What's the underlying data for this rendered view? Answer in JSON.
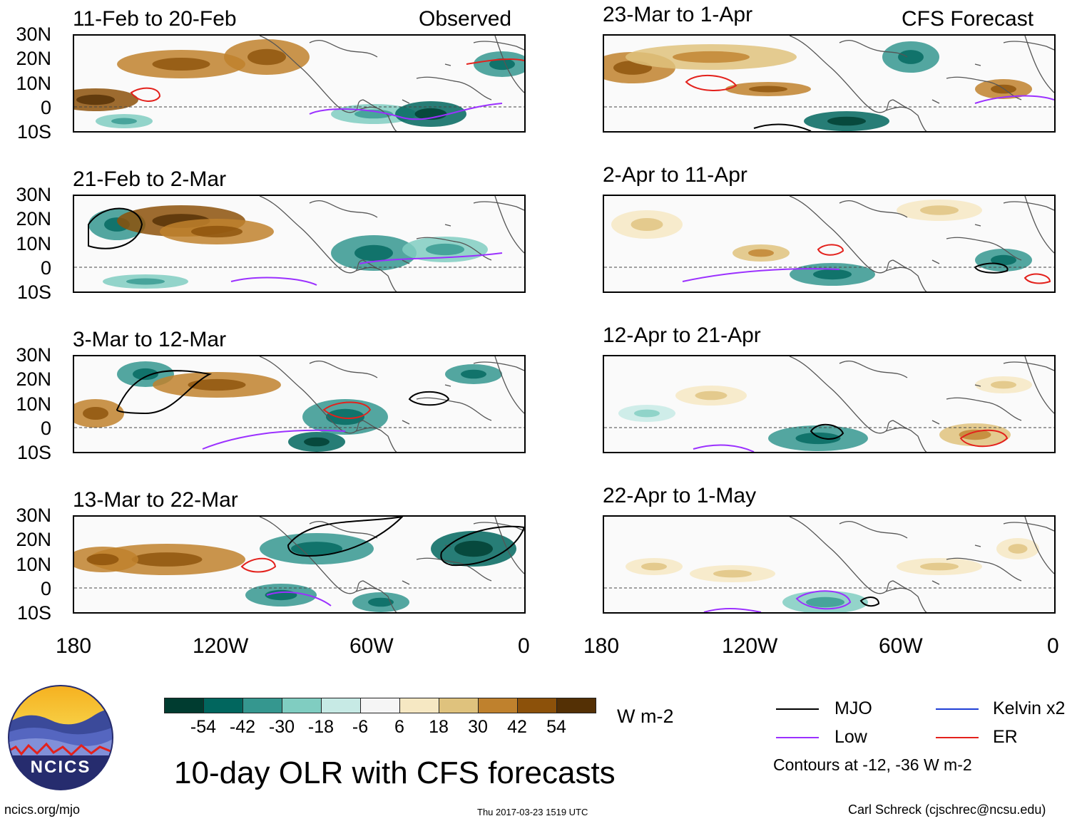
{
  "header": {
    "observed_label": "Observed",
    "forecast_label": "CFS Forecast"
  },
  "panels": [
    {
      "title": "11-Feb to 20-Feb",
      "source": "observed"
    },
    {
      "title": "21-Feb to 2-Mar",
      "source": "observed"
    },
    {
      "title": "3-Mar to 12-Mar",
      "source": "observed"
    },
    {
      "title": "13-Mar to 22-Mar",
      "source": "observed"
    },
    {
      "title": "23-Mar to 1-Apr",
      "source": "forecast"
    },
    {
      "title": "2-Apr to 11-Apr",
      "source": "forecast"
    },
    {
      "title": "12-Apr to 21-Apr",
      "source": "forecast"
    },
    {
      "title": "22-Apr to 1-May",
      "source": "forecast"
    }
  ],
  "axes": {
    "lat_labels": [
      "30N",
      "20N",
      "10N",
      "0",
      "10S"
    ],
    "lon_labels": [
      "180",
      "120W",
      "60W",
      "0"
    ]
  },
  "colorbar": {
    "unit": "W m-2",
    "tick_labels": [
      "-54",
      "-42",
      "-30",
      "-18",
      "-6",
      "6",
      "18",
      "30",
      "42",
      "54"
    ],
    "colors": [
      "#003c30",
      "#01665e",
      "#35978f",
      "#80cdc1",
      "#c7eae5",
      "#f5f5f5",
      "#f6e8c3",
      "#dfc27d",
      "#bf812d",
      "#8c510a",
      "#543005"
    ]
  },
  "legend": {
    "items": [
      {
        "label": "MJO",
        "color": "#000000"
      },
      {
        "label": "Kelvin x2",
        "color": "#1f3fd6"
      },
      {
        "label": "Low",
        "color": "#9b30ff"
      },
      {
        "label": "ER",
        "color": "#e3211c"
      }
    ],
    "contours_note": "Contours at -12, -36 W m-2"
  },
  "title": "10-day OLR with CFS forecasts",
  "logo_text": "NCICS",
  "footer": {
    "url": "ncics.org/mjo",
    "timestamp": "Thu 2017-03-23 1519 UTC",
    "credit": "Carl Schreck (cjschrec@ncsu.edu)"
  }
}
